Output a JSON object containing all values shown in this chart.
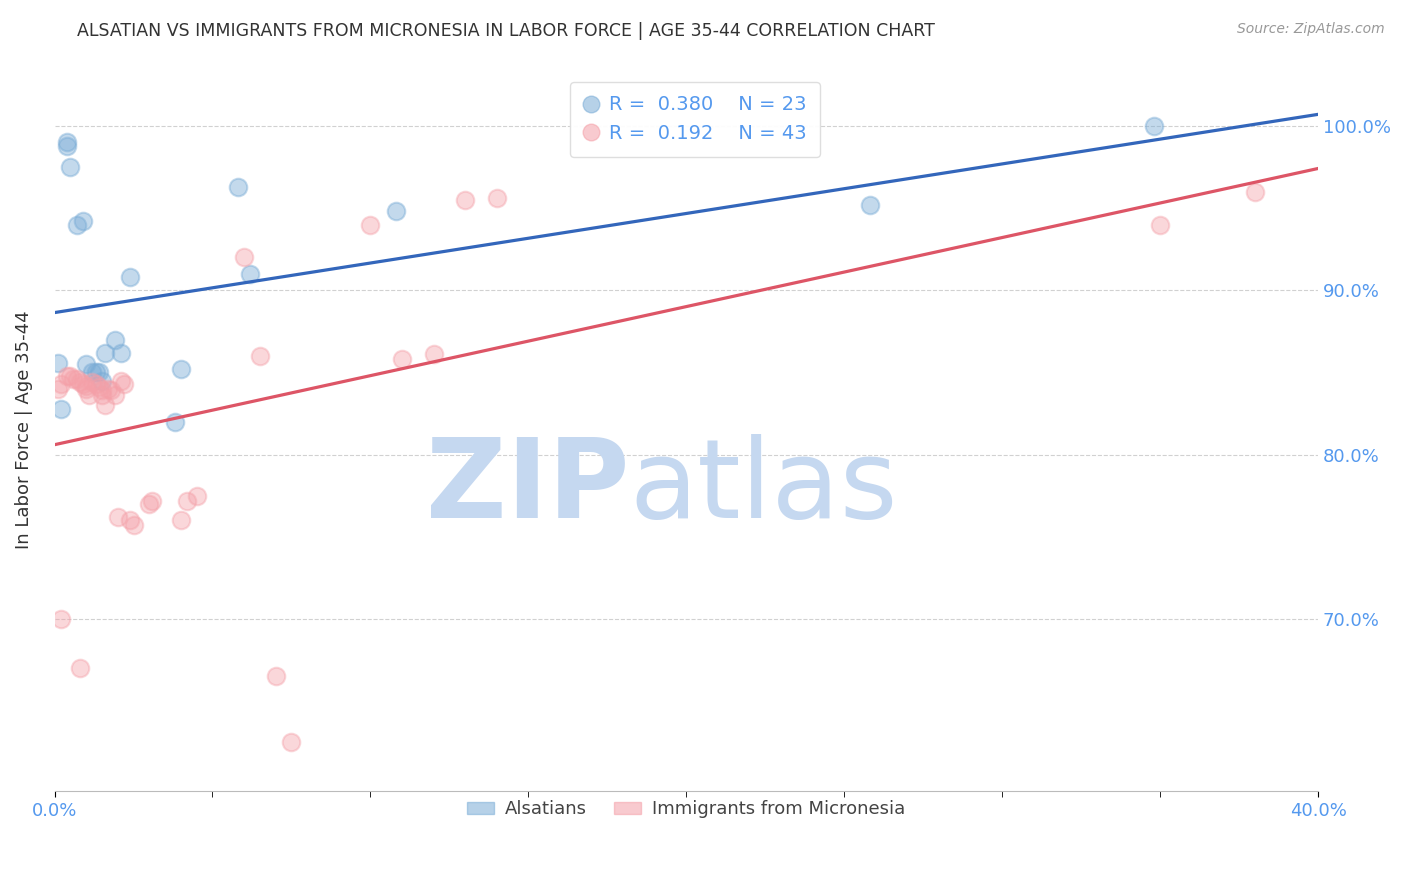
{
  "title": "ALSATIAN VS IMMIGRANTS FROM MICRONESIA IN LABOR FORCE | AGE 35-44 CORRELATION CHART",
  "source": "Source: ZipAtlas.com",
  "ylabel": "In Labor Force | Age 35-44",
  "blue_color": "#7AACD6",
  "pink_color": "#F4A0A8",
  "blue_line_color": "#3366BB",
  "pink_line_color": "#DD5566",
  "axis_label_color": "#5599EE",
  "title_color": "#333333",
  "watermark_zip_color": "#C5D8F0",
  "watermark_atlas_color": "#C5D8F0",
  "xlim": [
    0.0,
    0.4
  ],
  "ylim": [
    0.595,
    1.035
  ],
  "ytick_vals": [
    0.7,
    0.8,
    0.9,
    1.0
  ],
  "ytick_labels": [
    "70.0%",
    "80.0%",
    "90.0%",
    "100.0%"
  ],
  "xtick_vals": [
    0.0,
    0.4
  ],
  "xtick_labels": [
    "0.0%",
    "40.0%"
  ],
  "blue_x": [
    0.001,
    0.004,
    0.004,
    0.005,
    0.007,
    0.009,
    0.01,
    0.012,
    0.013,
    0.014,
    0.015,
    0.016,
    0.019,
    0.021,
    0.024,
    0.038,
    0.04,
    0.058,
    0.062,
    0.108,
    0.258,
    0.348,
    0.002
  ],
  "blue_y": [
    0.856,
    0.99,
    0.988,
    0.975,
    0.94,
    0.942,
    0.855,
    0.85,
    0.85,
    0.85,
    0.845,
    0.862,
    0.87,
    0.862,
    0.908,
    0.82,
    0.852,
    0.963,
    0.91,
    0.948,
    0.952,
    1.0,
    0.828
  ],
  "pink_x": [
    0.001,
    0.002,
    0.004,
    0.005,
    0.006,
    0.007,
    0.008,
    0.009,
    0.01,
    0.01,
    0.011,
    0.012,
    0.013,
    0.014,
    0.015,
    0.015,
    0.016,
    0.017,
    0.018,
    0.019,
    0.02,
    0.021,
    0.022,
    0.024,
    0.025,
    0.03,
    0.031,
    0.04,
    0.042,
    0.045,
    0.06,
    0.065,
    0.1,
    0.11,
    0.12,
    0.13,
    0.14,
    0.35,
    0.38,
    0.002,
    0.008,
    0.07,
    0.075
  ],
  "pink_y": [
    0.84,
    0.843,
    0.848,
    0.848,
    0.846,
    0.846,
    0.844,
    0.843,
    0.842,
    0.84,
    0.836,
    0.844,
    0.843,
    0.841,
    0.839,
    0.836,
    0.83,
    0.84,
    0.839,
    0.836,
    0.762,
    0.845,
    0.843,
    0.76,
    0.757,
    0.77,
    0.772,
    0.76,
    0.772,
    0.775,
    0.92,
    0.86,
    0.94,
    0.858,
    0.861,
    0.955,
    0.956,
    0.94,
    0.96,
    0.7,
    0.67,
    0.665,
    0.625
  ],
  "legend_R_blue": "0.380",
  "legend_N_blue": "23",
  "legend_R_pink": "0.192",
  "legend_N_pink": "43",
  "figsize": [
    14.06,
    8.92
  ],
  "dpi": 100
}
